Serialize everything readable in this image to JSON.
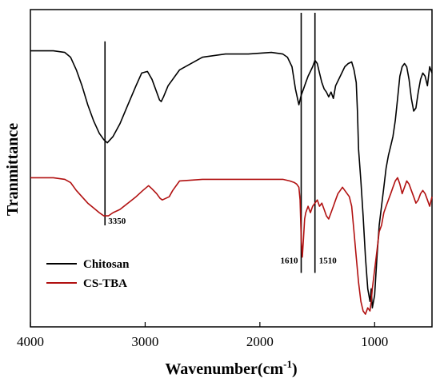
{
  "chart_data": {
    "type": "line",
    "title": "",
    "xlabel": "Wavenumber(cm",
    "xlabel_sup": "-1",
    "xlabel_suffix": ")",
    "ylabel": "Tranmittance",
    "xlim": [
      4000,
      500
    ],
    "x_reversed": true,
    "ylim": [
      0,
      100
    ],
    "y_ticks_shown": false,
    "grid": false,
    "x_ticks": [
      4000,
      3000,
      2000,
      1000
    ],
    "x_tick_labels": [
      "4000",
      "3000",
      "2000",
      "1000"
    ],
    "legend_position": "bottom-left",
    "series": [
      {
        "name": "Chitosan",
        "color": "#000000",
        "x": [
          4000,
          3800,
          3700,
          3650,
          3600,
          3550,
          3500,
          3450,
          3400,
          3360,
          3330,
          3280,
          3220,
          3150,
          3080,
          3030,
          2980,
          2940,
          2900,
          2875,
          2860,
          2840,
          2800,
          2700,
          2500,
          2300,
          2100,
          1900,
          1800,
          1760,
          1720,
          1690,
          1660,
          1640,
          1620,
          1600,
          1580,
          1560,
          1540,
          1520,
          1500,
          1480,
          1460,
          1440,
          1420,
          1400,
          1380,
          1360,
          1340,
          1300,
          1260,
          1230,
          1200,
          1180,
          1160,
          1150,
          1140,
          1120,
          1100,
          1080,
          1060,
          1040,
          1030,
          1020,
          1000,
          980,
          960,
          940,
          920,
          900,
          880,
          860,
          840,
          820,
          800,
          780,
          760,
          740,
          720,
          700,
          680,
          660,
          640,
          620,
          600,
          580,
          560,
          540,
          520,
          500
        ],
        "y": [
          87,
          87,
          86.5,
          85,
          81,
          76,
          70,
          65,
          61,
          59,
          58,
          60,
          64,
          70,
          76,
          80,
          80.5,
          78,
          74,
          71.5,
          71,
          72.5,
          76,
          81,
          85,
          86,
          86,
          86.5,
          86,
          85,
          82,
          75,
          70,
          73,
          75,
          77,
          79,
          80.5,
          82,
          84,
          83,
          80,
          77,
          75,
          74,
          72.5,
          74,
          72,
          76,
          79,
          82,
          83,
          83.5,
          81,
          77,
          68,
          56,
          46,
          35,
          22,
          12,
          8,
          12,
          6,
          10,
          22,
          32,
          38,
          44,
          50,
          54,
          57,
          60,
          65,
          72,
          79,
          82,
          83,
          82,
          78,
          72,
          68,
          69,
          74,
          78,
          80,
          79,
          76,
          82,
          80
        ]
      },
      {
        "name": "CS-TBA",
        "color": "#b11010",
        "x": [
          4000,
          3800,
          3700,
          3650,
          3600,
          3550,
          3500,
          3450,
          3400,
          3360,
          3320,
          3280,
          3220,
          3150,
          3080,
          3020,
          2970,
          2940,
          2900,
          2870,
          2850,
          2820,
          2790,
          2760,
          2700,
          2500,
          2300,
          2100,
          1900,
          1800,
          1740,
          1700,
          1680,
          1660,
          1650,
          1640,
          1630,
          1620,
          1610,
          1600,
          1580,
          1560,
          1540,
          1520,
          1500,
          1480,
          1460,
          1440,
          1420,
          1400,
          1380,
          1360,
          1340,
          1320,
          1300,
          1280,
          1260,
          1240,
          1220,
          1200,
          1180,
          1160,
          1140,
          1120,
          1100,
          1080,
          1060,
          1040,
          1030,
          1020,
          1000,
          980,
          960,
          940,
          920,
          900,
          880,
          860,
          840,
          820,
          800,
          780,
          760,
          740,
          720,
          700,
          680,
          660,
          640,
          620,
          600,
          580,
          560,
          540,
          520,
          500
        ],
        "y": [
          47,
          47,
          46.5,
          45.5,
          43,
          41,
          39,
          37.5,
          36,
          35,
          35,
          36,
          37,
          39,
          41,
          43,
          44.5,
          43.5,
          42,
          40.5,
          40,
          40.5,
          41,
          43,
          46,
          46.5,
          46.5,
          46.5,
          46.5,
          46.5,
          46,
          45.5,
          45,
          44,
          40,
          28,
          22,
          28,
          34,
          36,
          38,
          36,
          38,
          39,
          40,
          38,
          39,
          37,
          35,
          34,
          36,
          38,
          40,
          42,
          43,
          44,
          43,
          42,
          41,
          38,
          30,
          22,
          14,
          8,
          5,
          4,
          6,
          5,
          8,
          12,
          18,
          24,
          30,
          32,
          36,
          38,
          40,
          42,
          44,
          46,
          47,
          45,
          42,
          44,
          46,
          45,
          43,
          41,
          39,
          40,
          42,
          43,
          42,
          40,
          38,
          41
        ]
      }
    ],
    "annotations": [
      {
        "label": "3350",
        "x": 3350,
        "line_y_range": [
          32,
          90
        ]
      },
      {
        "label": "1610",
        "x": 1640,
        "line_y_range": [
          17,
          99
        ]
      },
      {
        "label": "1510",
        "x": 1520,
        "line_y_range": [
          17,
          99
        ]
      }
    ]
  }
}
